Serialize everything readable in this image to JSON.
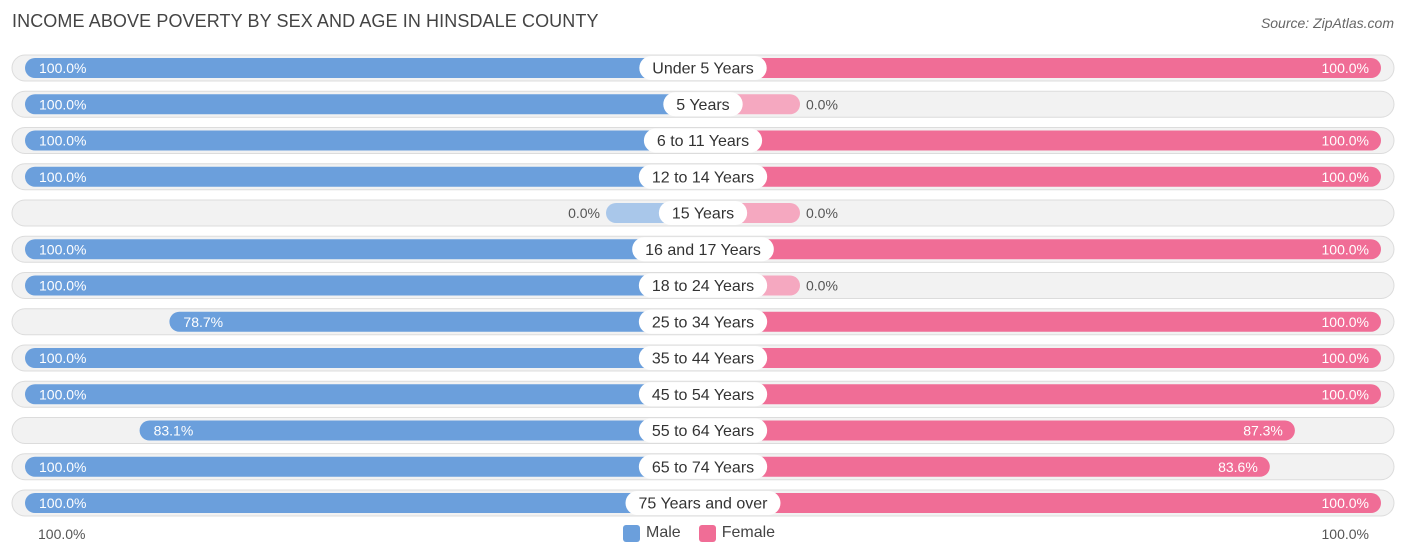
{
  "title": "INCOME ABOVE POVERTY BY SEX AND AGE IN HINSDALE COUNTY",
  "source": "Source: ZipAtlas.com",
  "colors": {
    "male": "#6b9fdc",
    "male_zero": "#a9c7ea",
    "female": "#f06d96",
    "female_zero": "#f5a8c0",
    "row_bg": "#f2f2f2",
    "row_border": "#dcdcdc"
  },
  "chart_data": {
    "type": "bar",
    "orientation": "horizontal-diverging",
    "title": "INCOME ABOVE POVERTY BY SEX AND AGE IN HINSDALE COUNTY",
    "categories": [
      "Under 5 Years",
      "5 Years",
      "6 to 11 Years",
      "12 to 14 Years",
      "15 Years",
      "16 and 17 Years",
      "18 to 24 Years",
      "25 to 34 Years",
      "35 to 44 Years",
      "45 to 54 Years",
      "55 to 64 Years",
      "65 to 74 Years",
      "75 Years and over"
    ],
    "series": [
      {
        "name": "Male",
        "values": [
          100.0,
          100.0,
          100.0,
          100.0,
          0.0,
          100.0,
          100.0,
          78.7,
          100.0,
          100.0,
          83.1,
          100.0,
          100.0
        ],
        "labels": [
          "100.0%",
          "100.0%",
          "100.0%",
          "100.0%",
          "0.0%",
          "100.0%",
          "100.0%",
          "78.7%",
          "100.0%",
          "100.0%",
          "83.1%",
          "100.0%",
          "100.0%"
        ]
      },
      {
        "name": "Female",
        "values": [
          100.0,
          0.0,
          100.0,
          100.0,
          0.0,
          100.0,
          0.0,
          100.0,
          100.0,
          100.0,
          87.3,
          83.6,
          100.0
        ],
        "labels": [
          "100.0%",
          "0.0%",
          "100.0%",
          "100.0%",
          "0.0%",
          "100.0%",
          "0.0%",
          "100.0%",
          "100.0%",
          "100.0%",
          "87.3%",
          "83.6%",
          "100.0%"
        ]
      }
    ],
    "xlim": [
      -100,
      100
    ],
    "axis_left_label": "100.0%",
    "axis_right_label": "100.0%",
    "legend": [
      "Male",
      "Female"
    ],
    "legend_position": "bottom-center"
  }
}
